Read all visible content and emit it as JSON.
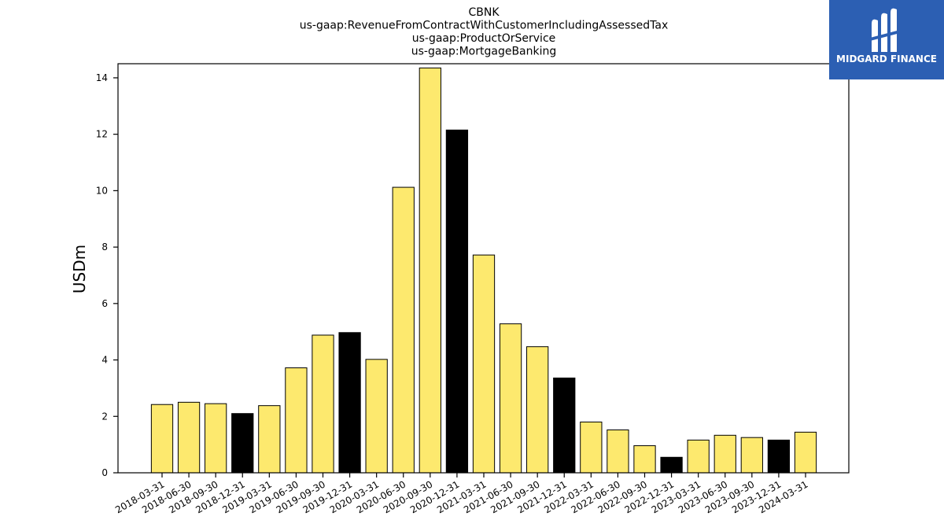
{
  "logo": {
    "text": "MIDGARD FINANCE",
    "icon": "midgard-logo-icon",
    "bg_color": "#2c5fb3"
  },
  "chart_data": {
    "type": "bar",
    "title": [
      "CBNK",
      "us-gaap:RevenueFromContractWithCustomerIncludingAssessedTax",
      "us-gaap:ProductOrService",
      "us-gaap:MortgageBanking"
    ],
    "xlabel": "",
    "ylabel": "USDm",
    "ylim": [
      0,
      14.5
    ],
    "yticks": [
      0,
      2,
      4,
      6,
      8,
      10,
      12,
      14
    ],
    "grid": false,
    "colors": {
      "regular": "#fde96e",
      "year_end": "#000000",
      "edge": "#000000"
    },
    "categories": [
      "2018-03-31",
      "2018-06-30",
      "2018-09-30",
      "2018-12-31",
      "2019-03-31",
      "2019-06-30",
      "2019-09-30",
      "2019-12-31",
      "2020-03-31",
      "2020-06-30",
      "2020-09-30",
      "2020-12-31",
      "2021-03-31",
      "2021-06-30",
      "2021-09-30",
      "2021-12-31",
      "2022-03-31",
      "2022-06-30",
      "2022-09-30",
      "2022-12-31",
      "2023-03-31",
      "2023-06-30",
      "2023-09-30",
      "2023-12-31",
      "2024-03-31"
    ],
    "values": [
      2.42,
      2.5,
      2.45,
      2.1,
      2.38,
      3.72,
      4.88,
      4.97,
      4.02,
      10.12,
      14.35,
      12.15,
      7.72,
      5.28,
      4.47,
      3.36,
      1.8,
      1.52,
      0.96,
      0.55,
      1.16,
      1.33,
      1.25,
      1.16,
      1.44
    ],
    "highlight": [
      false,
      false,
      false,
      true,
      false,
      false,
      false,
      true,
      false,
      false,
      false,
      true,
      false,
      false,
      false,
      true,
      false,
      false,
      false,
      true,
      false,
      false,
      false,
      true,
      false
    ]
  }
}
